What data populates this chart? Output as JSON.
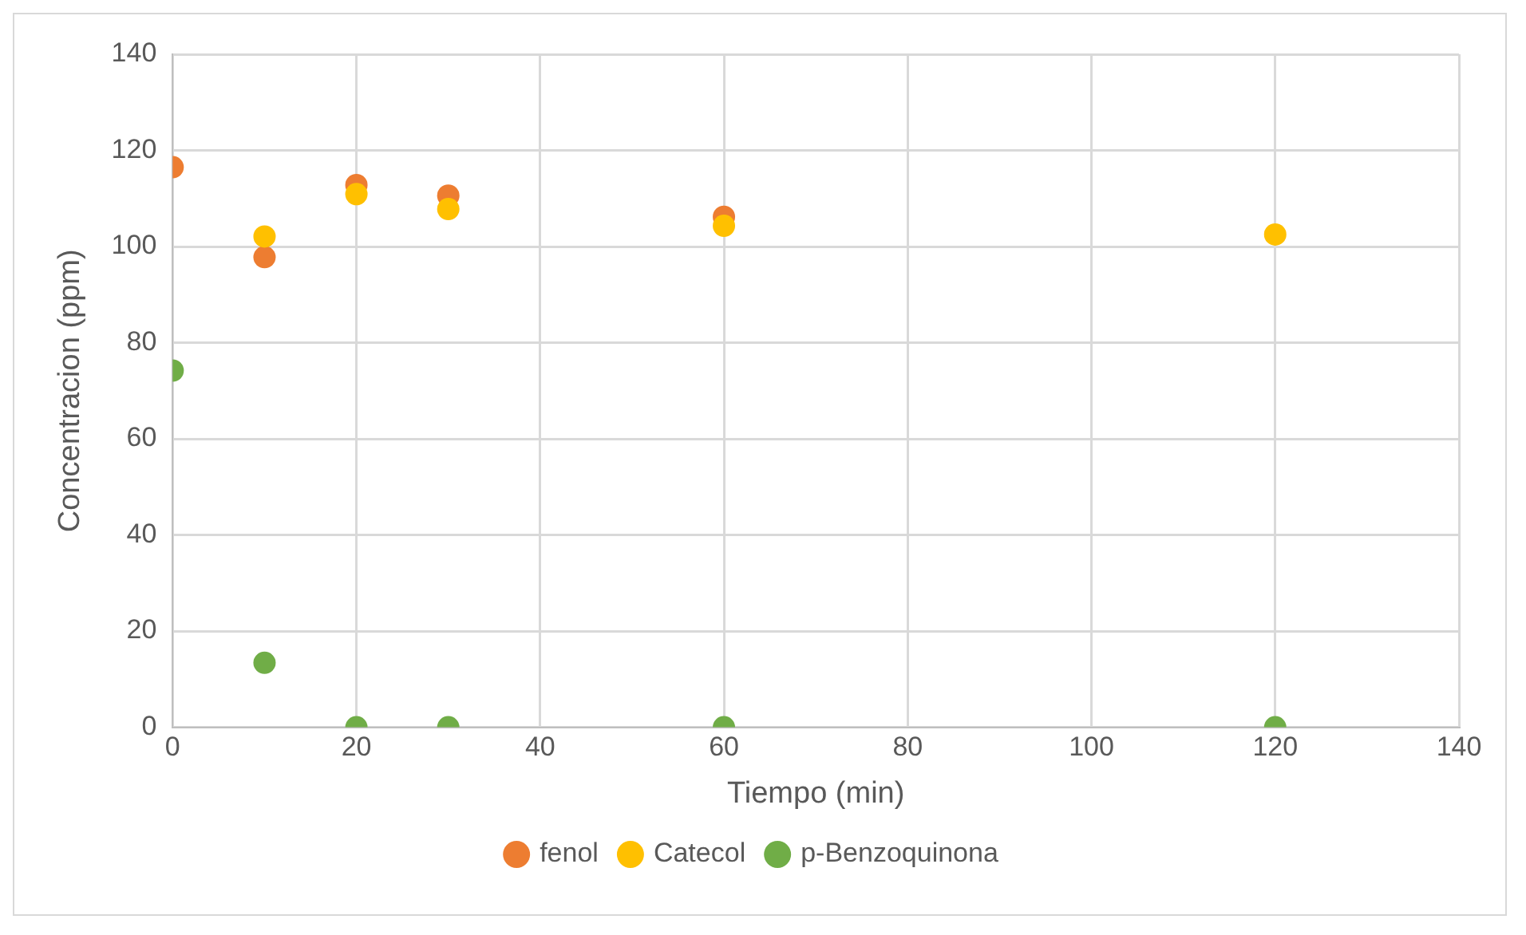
{
  "chart_data": {
    "type": "scatter",
    "xlabel": "Tiempo (min)",
    "ylabel": "Concentracion (ppm)",
    "x": [
      0,
      10,
      20,
      30,
      60,
      120
    ],
    "series": [
      {
        "name": "fenol",
        "color": "#ed7d31",
        "values": [
          116.5,
          97.8,
          112.8,
          110.6,
          106.2,
          null
        ]
      },
      {
        "name": "Catecol",
        "color": "#ffc000",
        "values": [
          null,
          102.1,
          110.9,
          107.8,
          104.3,
          102.5
        ]
      },
      {
        "name": "p-Benzoquinona",
        "color": "#70ad47",
        "values": [
          74.2,
          13.4,
          0,
          0,
          0,
          0
        ]
      }
    ],
    "xlim": [
      0,
      140
    ],
    "xticks": [
      0,
      20,
      40,
      60,
      80,
      100,
      120,
      140
    ],
    "ylim": [
      0,
      140
    ],
    "yticks": [
      0,
      20,
      40,
      60,
      80,
      100,
      120,
      140
    ],
    "grid": true,
    "legend": "bottom",
    "marker": "circle"
  }
}
